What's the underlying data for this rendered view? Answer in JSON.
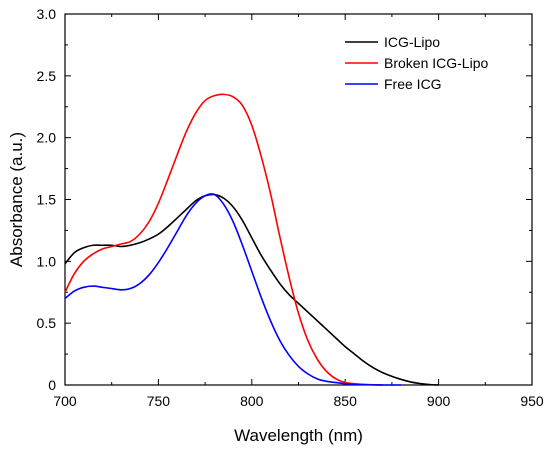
{
  "chart_data": {
    "type": "line",
    "title": "",
    "xlabel": "Wavelength (nm)",
    "ylabel": "Absorbance (a.u.)",
    "xlim": [
      700,
      950
    ],
    "ylim": [
      0,
      3.0
    ],
    "x_ticks": [
      "700",
      "750",
      "800",
      "850",
      "900",
      "950"
    ],
    "y_ticks": [
      "0",
      "0.5",
      "1.0",
      "1.5",
      "2.0",
      "2.5",
      "3.0"
    ],
    "grid": false,
    "legend_position": "top-right",
    "series": [
      {
        "name": "ICG-Lipo",
        "color": "#000000",
        "x": [
          700,
          705,
          710,
          715,
          720,
          725,
          730,
          735,
          740,
          745,
          750,
          755,
          760,
          765,
          770,
          775,
          780,
          785,
          790,
          795,
          800,
          805,
          810,
          815,
          820,
          825,
          830,
          835,
          840,
          845,
          850,
          855,
          860,
          865,
          870,
          875,
          880,
          885,
          890,
          895,
          900
        ],
        "y": [
          0.98,
          1.07,
          1.11,
          1.13,
          1.13,
          1.13,
          1.12,
          1.13,
          1.15,
          1.18,
          1.22,
          1.28,
          1.35,
          1.42,
          1.49,
          1.53,
          1.54,
          1.51,
          1.44,
          1.33,
          1.19,
          1.05,
          0.93,
          0.82,
          0.73,
          0.66,
          0.59,
          0.52,
          0.45,
          0.38,
          0.31,
          0.25,
          0.19,
          0.14,
          0.1,
          0.07,
          0.045,
          0.025,
          0.012,
          0.004,
          0.0
        ]
      },
      {
        "name": "Broken ICG-Lipo",
        "color": "#ff0000",
        "x": [
          700,
          705,
          710,
          715,
          720,
          725,
          730,
          735,
          740,
          745,
          750,
          755,
          760,
          765,
          770,
          775,
          780,
          785,
          790,
          795,
          800,
          805,
          810,
          815,
          820,
          825,
          830,
          835,
          840,
          845,
          850,
          855,
          860,
          865,
          870
        ],
        "y": [
          0.75,
          0.9,
          1.0,
          1.06,
          1.1,
          1.12,
          1.14,
          1.16,
          1.22,
          1.32,
          1.47,
          1.66,
          1.86,
          2.05,
          2.2,
          2.3,
          2.34,
          2.35,
          2.33,
          2.26,
          2.1,
          1.85,
          1.55,
          1.2,
          0.87,
          0.58,
          0.36,
          0.21,
          0.11,
          0.05,
          0.02,
          0.01,
          0.005,
          0.002,
          0.0
        ]
      },
      {
        "name": "Free ICG",
        "color": "#0000ff",
        "x": [
          700,
          705,
          710,
          715,
          720,
          725,
          730,
          735,
          740,
          745,
          750,
          755,
          760,
          765,
          770,
          775,
          780,
          785,
          790,
          795,
          800,
          805,
          810,
          815,
          820,
          825,
          830,
          835,
          840,
          845,
          850,
          855,
          860,
          865,
          870,
          875,
          880
        ],
        "y": [
          0.7,
          0.76,
          0.79,
          0.8,
          0.79,
          0.78,
          0.77,
          0.78,
          0.82,
          0.89,
          0.99,
          1.11,
          1.24,
          1.37,
          1.47,
          1.53,
          1.54,
          1.46,
          1.32,
          1.13,
          0.92,
          0.71,
          0.52,
          0.36,
          0.24,
          0.15,
          0.09,
          0.05,
          0.03,
          0.02,
          0.01,
          0.005,
          0.003,
          0.001,
          0.0,
          0.0,
          0.0
        ]
      }
    ]
  }
}
